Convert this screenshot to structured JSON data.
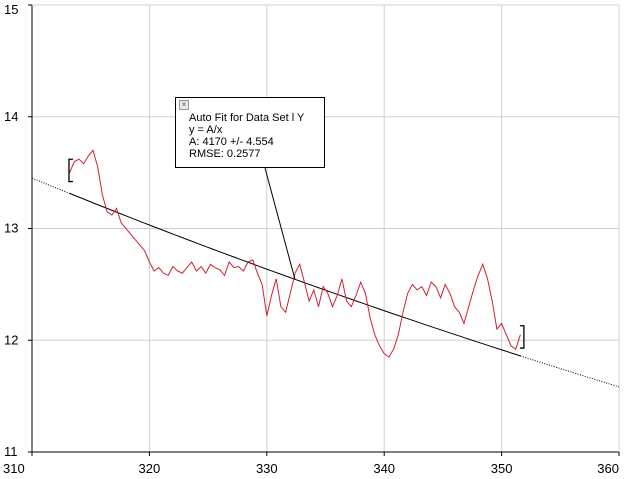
{
  "chart_data": {
    "type": "line",
    "xlim": [
      310,
      360
    ],
    "ylim": [
      11,
      15
    ],
    "x_ticks": [
      "310",
      "320",
      "330",
      "340",
      "350",
      "360"
    ],
    "y_ticks": [
      "11",
      "12",
      "13",
      "14",
      "15"
    ],
    "grid": true,
    "series": [
      {
        "kind": "measured",
        "color": "#cc2233",
        "x": [
          313.2,
          313.6,
          314.0,
          314.4,
          314.8,
          315.2,
          315.6,
          316.0,
          316.4,
          316.8,
          317.2,
          317.6,
          318.0,
          318.4,
          318.8,
          319.2,
          319.6,
          320.0,
          320.4,
          320.8,
          321.2,
          321.6,
          322.0,
          322.4,
          322.8,
          323.2,
          323.6,
          324.0,
          324.4,
          324.8,
          325.2,
          325.6,
          326.0,
          326.4,
          326.8,
          327.2,
          327.6,
          328.0,
          328.4,
          328.8,
          329.2,
          329.6,
          330.0,
          330.4,
          330.8,
          331.2,
          331.6,
          332.0,
          332.4,
          332.8,
          333.2,
          333.6,
          334.0,
          334.4,
          334.8,
          335.2,
          335.6,
          336.0,
          336.4,
          336.8,
          337.2,
          337.6,
          338.0,
          338.4,
          338.8,
          339.2,
          339.6,
          340.0,
          340.4,
          340.8,
          341.2,
          341.6,
          342.0,
          342.4,
          342.8,
          343.2,
          343.6,
          344.0,
          344.4,
          344.8,
          345.2,
          345.6,
          346.0,
          346.4,
          346.8,
          347.2,
          347.6,
          348.0,
          348.4,
          348.8,
          349.2,
          349.6,
          350.0,
          350.4,
          350.8,
          351.2,
          351.6
        ],
        "y": [
          13.5,
          13.6,
          13.62,
          13.58,
          13.65,
          13.7,
          13.55,
          13.3,
          13.15,
          13.12,
          13.18,
          13.05,
          13.0,
          12.95,
          12.9,
          12.85,
          12.8,
          12.7,
          12.62,
          12.65,
          12.6,
          12.58,
          12.66,
          12.62,
          12.6,
          12.65,
          12.7,
          12.62,
          12.66,
          12.6,
          12.68,
          12.65,
          12.63,
          12.58,
          12.7,
          12.65,
          12.66,
          12.62,
          12.7,
          12.72,
          12.6,
          12.5,
          12.22,
          12.4,
          12.55,
          12.3,
          12.25,
          12.42,
          12.6,
          12.68,
          12.52,
          12.35,
          12.45,
          12.3,
          12.48,
          12.42,
          12.3,
          12.4,
          12.55,
          12.35,
          12.3,
          12.4,
          12.52,
          12.42,
          12.2,
          12.05,
          11.95,
          11.88,
          11.85,
          11.92,
          12.05,
          12.25,
          12.42,
          12.5,
          12.45,
          12.48,
          12.4,
          12.52,
          12.48,
          12.38,
          12.5,
          12.42,
          12.3,
          12.25,
          12.15,
          12.3,
          12.45,
          12.58,
          12.68,
          12.55,
          12.35,
          12.1,
          12.15,
          12.05,
          11.95,
          11.92,
          12.05
        ]
      },
      {
        "kind": "fit",
        "equation": "y = A/x",
        "A": 4170,
        "color": "#000000"
      }
    ],
    "annotation": {
      "title": "Auto Fit for  Data Set l Y",
      "equation": "y = A/x",
      "param": "A: 4170 +/- 4.554",
      "rmse": "RMSE: 0.2577"
    }
  },
  "ui": {
    "close_glyph": "×"
  }
}
